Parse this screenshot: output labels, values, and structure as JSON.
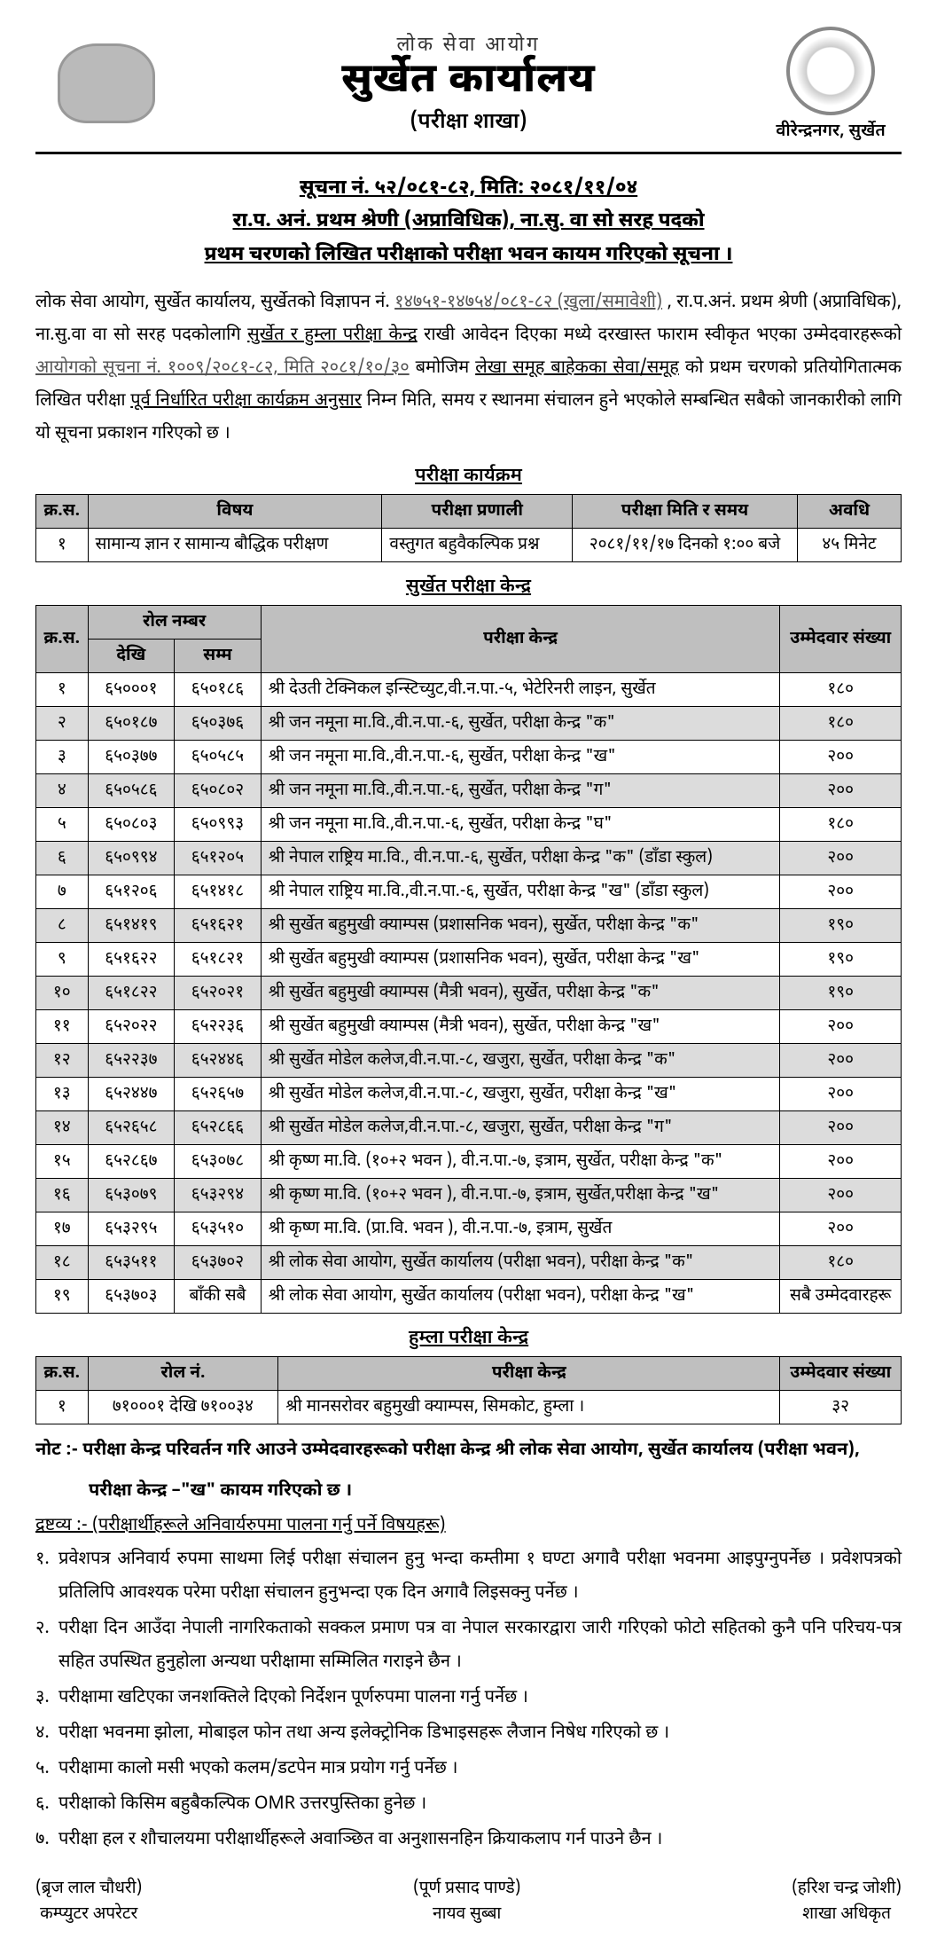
{
  "colors": {
    "text": "#000000",
    "background": "#ffffff",
    "header_gray": "#bfbfbf",
    "row_alt": "#dcdcdc",
    "rule": "#000000"
  },
  "header": {
    "org_pre": "लोक सेवा आयोग",
    "office": "सुर्खेत कार्यालय",
    "branch": "(परीक्षा शाखा)",
    "location": "वीरेन्द्रनगर, सुर्खेत"
  },
  "notice": {
    "line1": "सूचना नं. ५२/०८१-८२, मिति: २०८१/११/०४",
    "line2": "रा.प. अनं. प्रथम श्रेणी (अप्राविधिक), ना.सु. वा सो सरह  पदको",
    "line3": "प्रथम चरणको लिखित परीक्षाको परीक्षा भवन कायम गरिएको  सूचना ।"
  },
  "paragraph": {
    "p1a": "लोक सेवा आयोग, सुर्खेत कार्यालय, सुर्खेतको विज्ञापन नं. ",
    "p1b": "१४७५१-१४७५४/०८१-८२ (खुला/समावेशी)",
    "p1c": ", रा.प.अनं. प्रथम श्रेणी (अप्राविधिक), ना.सु.वा वा सो सरह पदकोलागि ",
    "p1d": "सुर्खेत र हुम्ला परीक्षा केन्द्र",
    "p1e": " राखी आवेदन दिएका मध्ये दरखास्त फाराम स्वीकृत भएका उम्मेदवारहरूको ",
    "p1f": "आयोगको सूचना नं. १००९/२०८१-८२, मिति २०८१/१०/३०",
    "p1g": " बमोजिम ",
    "p1h": "लेखा समूह बाहेकका सेवा/समूह",
    "p1i": "को प्रथम चरणको प्रतियोगितात्मक लिखित परीक्षा ",
    "p1j": "पूर्व निर्धारित परीक्षा कार्यक्रम अनुसार",
    "p1k": " निम्न मिति, समय र स्थानमा संचालन हुने भएकोले सम्बन्धित सबैको जानकारीको लागि यो सूचना प्रकाशन गरिएको छ ।"
  },
  "schedule": {
    "title": "परीक्षा कार्यक्रम",
    "headers": [
      "क्र.स.",
      "विषय",
      "परीक्षा प्रणाली",
      "परीक्षा मिति र समय",
      "अवधि"
    ],
    "rows": [
      [
        "१",
        "सामान्य ज्ञान र सामान्य बौद्धिक परीक्षण",
        "वस्तुगत बहुवैकल्पिक प्रश्न",
        "२०८१/११/१७ दिनको १:०० बजे",
        "४५ मिनेट"
      ]
    ]
  },
  "surkhet": {
    "title": "सुर्खेत परीक्षा केन्द्र",
    "headers": {
      "sn": "क्र.स.",
      "roll": "रोल नम्बर",
      "from": "देखि",
      "to": "सम्म",
      "center": "परीक्षा केन्द्र",
      "count": "उम्मेदवार संख्या"
    },
    "rows": [
      {
        "sn": "१",
        "from": "६५०००१",
        "to": "६५०१८६",
        "center": "श्री देउती टेक्निकल इन्स्टिच्युट,वी.न.पा.-५, भेटेरिनरी लाइन, सुर्खेत",
        "count": "१८०"
      },
      {
        "sn": "२",
        "from": "६५०१८७",
        "to": "६५०३७६",
        "center": "श्री जन नमूना मा.वि.,वी.न.पा.-६, सुर्खेत, परीक्षा केन्द्र \"क\"",
        "count": "१८०"
      },
      {
        "sn": "३",
        "from": "६५०३७७",
        "to": "६५०५८५",
        "center": "श्री जन नमूना मा.वि.,वी.न.पा.-६, सुर्खेत, परीक्षा केन्द्र \"ख\"",
        "count": "२००"
      },
      {
        "sn": "४",
        "from": "६५०५८६",
        "to": "६५०८०२",
        "center": "श्री जन नमूना मा.वि.,वी.न.पा.-६, सुर्खेत, परीक्षा केन्द्र \"ग\"",
        "count": "२००"
      },
      {
        "sn": "५",
        "from": "६५०८०३",
        "to": "६५०९९३",
        "center": "श्री जन नमूना मा.वि.,वी.न.पा.-६, सुर्खेत, परीक्षा केन्द्र \"घ\"",
        "count": "१८०"
      },
      {
        "sn": "६",
        "from": "६५०९९४",
        "to": "६५१२०५",
        "center": "श्री नेपाल राष्ट्रिय मा.वि., वी.न.पा.-६, सुर्खेत, परीक्षा केन्द्र \"क\" (डाँडा स्कुल)",
        "count": "२००"
      },
      {
        "sn": "७",
        "from": "६५१२०६",
        "to": "६५१४१८",
        "center": "श्री नेपाल राष्ट्रिय मा.वि.,वी.न.पा.-६, सुर्खेत, परीक्षा केन्द्र \"ख\" (डाँडा स्कुल)",
        "count": "२००"
      },
      {
        "sn": "८",
        "from": "६५१४१९",
        "to": "६५१६२१",
        "center": "श्री सुर्खेत बहुमुखी क्याम्पस (प्रशासनिक भवन), सुर्खेत, परीक्षा केन्द्र \"क\"",
        "count": "१९०"
      },
      {
        "sn": "९",
        "from": "६५१६२२",
        "to": "६५१८२१",
        "center": "श्री सुर्खेत बहुमुखी क्याम्पस (प्रशासनिक भवन), सुर्खेत, परीक्षा केन्द्र \"ख\"",
        "count": "१९०"
      },
      {
        "sn": "१०",
        "from": "६५१८२२",
        "to": "६५२०२१",
        "center": "श्री सुर्खेत बहुमुखी क्याम्पस (मैत्री भवन), सुर्खेत, परीक्षा केन्द्र \"क\"",
        "count": "१९०"
      },
      {
        "sn": "११",
        "from": "६५२०२२",
        "to": "६५२२३६",
        "center": "श्री सुर्खेत बहुमुखी क्याम्पस (मैत्री भवन), सुर्खेत, परीक्षा केन्द्र \"ख\"",
        "count": "२००"
      },
      {
        "sn": "१२",
        "from": "६५२२३७",
        "to": "६५२४४६",
        "center": "श्री सुर्खेत मोडेल कलेज,वी.न.पा.-८, खजुरा, सुर्खेत, परीक्षा केन्द्र \"क\"",
        "count": "२००"
      },
      {
        "sn": "१३",
        "from": "६५२४४७",
        "to": "६५२६५७",
        "center": "श्री सुर्खेत मोडेल कलेज,वी.न.पा.-८, खजुरा, सुर्खेत, परीक्षा केन्द्र \"ख\"",
        "count": "२००"
      },
      {
        "sn": "१४",
        "from": "६५२६५८",
        "to": "६५२८६६",
        "center": "श्री सुर्खेत मोडेल कलेज,वी.न.पा.-८, खजुरा, सुर्खेत, परीक्षा केन्द्र \"ग\"",
        "count": "२००"
      },
      {
        "sn": "१५",
        "from": "६५२८६७",
        "to": "६५३०७८",
        "center": "श्री कृष्ण मा.वि. (१०+२ भवन ), वी.न.पा.-७, इत्राम, सुर्खेत, परीक्षा केन्द्र \"क\"",
        "count": "२००"
      },
      {
        "sn": "१६",
        "from": "६५३०७९",
        "to": "६५३२९४",
        "center": "श्री कृष्ण मा.वि. (१०+२ भवन ), वी.न.पा.-७, इत्राम, सुर्खेत,परीक्षा केन्द्र \"ख\"",
        "count": "२००"
      },
      {
        "sn": "१७",
        "from": "६५३२९५",
        "to": "६५३५१०",
        "center": "श्री कृष्ण मा.वि. (प्रा.वि. भवन ), वी.न.पा.-७, इत्राम, सुर्खेत",
        "count": "२००"
      },
      {
        "sn": "१८",
        "from": "६५३५११",
        "to": "६५३७०२",
        "center": "श्री लोक सेवा आयोग, सुर्खेत कार्यालय (परीक्षा भवन), परीक्षा केन्द्र \"क\"",
        "count": "१८०"
      },
      {
        "sn": "१९",
        "from": "६५३७०३",
        "to": "बाँकी सबै",
        "center": "श्री लोक सेवा आयोग, सुर्खेत कार्यालय (परीक्षा भवन), परीक्षा केन्द्र \"ख\"",
        "count": "सबै उम्मेदवारहरू"
      }
    ]
  },
  "humla": {
    "title": "हुम्ला परीक्षा केन्द्र",
    "headers": [
      "क्र.स.",
      "रोल नं.",
      "परीक्षा केन्द्र",
      "उम्मेदवार संख्या"
    ],
    "rows": [
      [
        "१",
        "७१०००१ देखि ७१००३४",
        "श्री मानसरोवर बहुमुखी क्याम्पस, सिमकोट, हुम्ला ।",
        "३२"
      ]
    ]
  },
  "note": {
    "line1": "नोट :- परीक्षा केन्द्र परिवर्तन गरि आउने उम्मेदवारहरूको  परीक्षा केन्द्र श्री लोक सेवा आयोग, सुर्खेत कार्यालय (परीक्षा भवन),",
    "line2": "परीक्षा केन्द्र –\"ख\"  कायम गरिएको छ ।"
  },
  "instructions": {
    "title": "द्रष्टव्य :- (परीक्षार्थीहरूले अनिवार्यरुपमा पालना गर्नु पर्ने विषयहरू)",
    "items": [
      {
        "n": "१.",
        "t": "प्रवेशपत्र अनिवार्य रुपमा साथमा लिई परीक्षा संचालन हुनु भन्दा कम्तीमा १ घण्टा अगावै परीक्षा भवनमा आइपुग्नुपर्नेछ । प्रवेशपत्रको प्रतिलिपि आवश्यक परेमा परीक्षा संचालन हुनुभन्दा एक दिन अगावै लिइसक्नु पर्नेछ ।"
      },
      {
        "n": "२.",
        "t": "परीक्षा दिन आउँदा नेपाली नागरिकताको सक्कल प्रमाण पत्र वा नेपाल सरकारद्वारा जारी गरिएको फोटो सहितको कुनै पनि परिचय-पत्र सहित उपस्थित हुनुहोला अन्यथा परीक्षामा सम्मिलित गराइने छैन ।"
      },
      {
        "n": "३.",
        "t": "परीक्षामा खटिएका जनशक्तिले दिएको निर्देशन पूर्णरुपमा पालना गर्नु पर्नेछ ।"
      },
      {
        "n": "४.",
        "t": "परीक्षा भवनमा झोला, मोबाइल फोन तथा अन्य इलेक्ट्रोनिक डिभाइसहरू लैजान निषेध गरिएको छ ।"
      },
      {
        "n": "५.",
        "t": "परीक्षामा कालो मसी भएको कलम/डटपेन मात्र प्रयोग गर्नु पर्नेछ ।"
      },
      {
        "n": "६.",
        "t": "परीक्षाको किसिम बहुबैकल्पिक OMR उत्तरपुस्तिका हुनेछ ।"
      },
      {
        "n": "७.",
        "t": "परीक्षा हल र शौचालयमा परीक्षार्थीहरूले अवाञ्छित वा अनुशासनहिन क्रियाकलाप गर्न पाउने छैन ।"
      }
    ]
  },
  "signatures": {
    "left": {
      "name": "(ब्रृज लाल चौधरी)",
      "role": "कम्प्युटर अपरेटर"
    },
    "mid": {
      "name": "(पूर्ण प्रसाद पाण्डे)",
      "role": "नायव सुब्बा"
    },
    "right": {
      "name": "(हरिश चन्द्र जोशी)",
      "role": "शाखा अधिकृत"
    }
  }
}
